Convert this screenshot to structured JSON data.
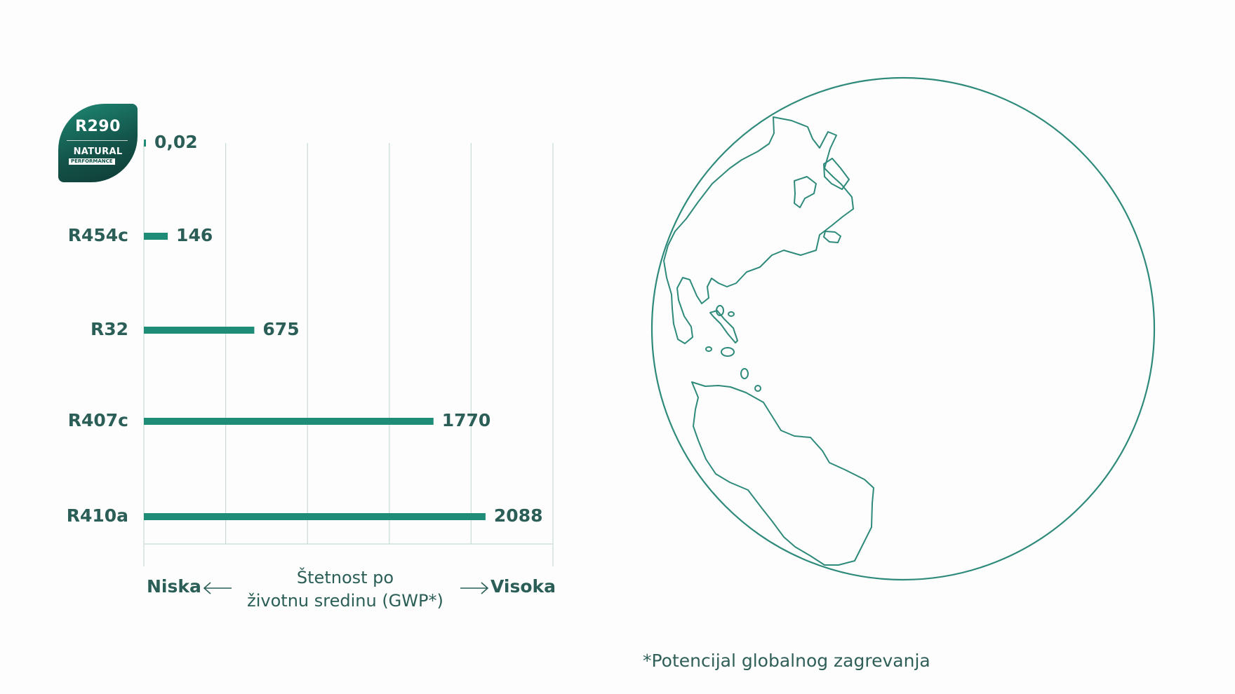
{
  "badge": {
    "name": "R290",
    "line1": "NATURAL",
    "line2": "PERFORMANCE"
  },
  "chart_data": {
    "type": "bar",
    "orientation": "horizontal",
    "categories": [
      "R290",
      "R454c",
      "R32",
      "R407c",
      "R410a"
    ],
    "values": [
      0.02,
      146,
      675,
      1770,
      2088
    ],
    "value_labels": [
      "0,02",
      "146",
      "675",
      "1770",
      "2088"
    ],
    "title": "",
    "xlabel": "Štetnost po životnu sredinu (GWP*)",
    "xlim": [
      0,
      2500
    ],
    "gridlines": [
      0,
      500,
      1000,
      1500,
      2000,
      2500
    ],
    "grid": true,
    "low_label": "Niska",
    "high_label": "Visoka",
    "bar_color": "#1f8c78"
  },
  "axis_title": {
    "line1": "Štetnost po",
    "line2": "životnu sredinu (GWP*)"
  },
  "footnote": "*Potencijal globalnog zagrevanja",
  "colors": {
    "accent": "#1f8c78",
    "text": "#2a5e56",
    "grid": "#c9dcd7",
    "globe": "#2e8a7a"
  },
  "globe_icon": "globe-americas-icon"
}
